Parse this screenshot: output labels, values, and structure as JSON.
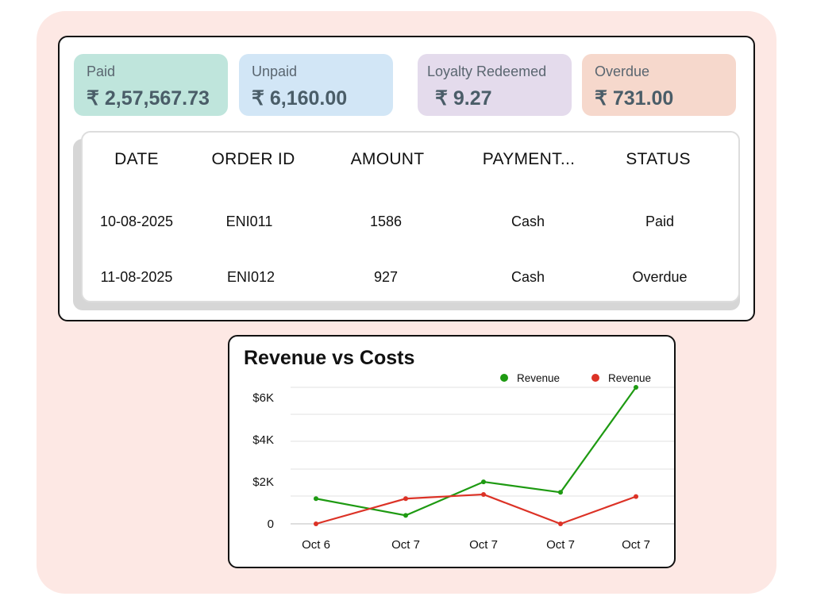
{
  "summary": {
    "paid": {
      "label": "Paid",
      "value": "₹ 2,57,567.73",
      "color": "#bfe5dc"
    },
    "unpaid": {
      "label": "Unpaid",
      "value": "₹ 6,160.00",
      "color": "#d2e6f6"
    },
    "loyalty": {
      "label": "Loyalty Redeemed",
      "value": "₹ 9.27",
      "color": "#e4dbec"
    },
    "overdue": {
      "label": "Overdue",
      "value": "₹ 731.00",
      "color": "#f6d8cc"
    }
  },
  "orders_table": {
    "columns": [
      "DATE",
      "ORDER ID",
      "AMOUNT",
      "PAYMENT...",
      "STATUS"
    ],
    "rows": [
      [
        "10-08-2025",
        "ENI011",
        "1586",
        "Cash",
        "Paid"
      ],
      [
        "11-08-2025",
        "ENI012",
        "927",
        "Cash",
        "Overdue"
      ]
    ]
  },
  "chart_data": {
    "type": "line",
    "title": "Revenue vs Costs",
    "xlabel": "",
    "ylabel": "",
    "categories": [
      "Oct 6",
      "Oct 7",
      "Oct 7",
      "Oct 7",
      "Oct 7"
    ],
    "ylim": [
      0,
      6500
    ],
    "y_ticks": [
      0,
      2000,
      4000,
      6000
    ],
    "y_tick_labels": [
      "0",
      "$2K",
      "$4K",
      "$6K"
    ],
    "grid": true,
    "legend_position": "top-right",
    "series": [
      {
        "name": "Revenue",
        "color": "#1e9a12",
        "values": [
          1200,
          400,
          2000,
          1500,
          6500
        ]
      },
      {
        "name": "Revenue",
        "color": "#dc3226",
        "values": [
          0,
          1200,
          1400,
          0,
          1300
        ]
      }
    ]
  }
}
